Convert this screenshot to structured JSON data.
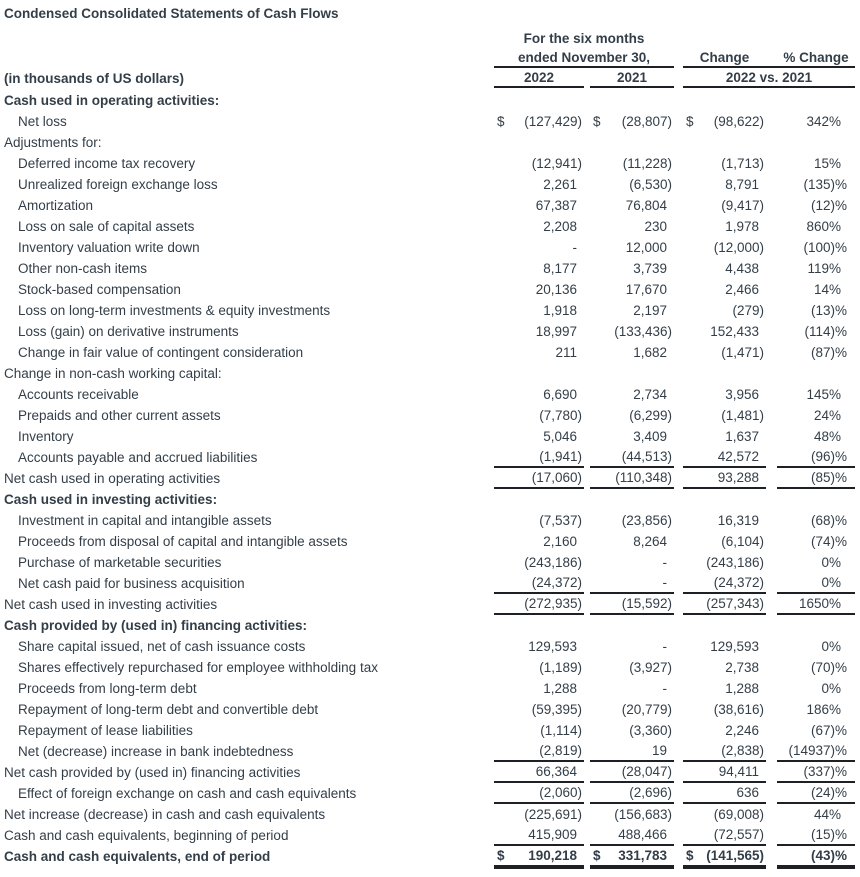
{
  "title": "Condensed Consolidated Statements of Cash Flows",
  "colors": {
    "text": "#333e48",
    "rule": "#1d2126",
    "background": "#ffffff"
  },
  "header": {
    "period_line1": "For the six months",
    "period_line2": "ended November 30,",
    "change_label": "Change",
    "pct_change_label": "% Change",
    "col_2022": "2022",
    "col_2021": "2021",
    "vs_label": "2022 vs. 2021",
    "units_note": "(in thousands of US dollars)",
    "currency_symbol": "$"
  },
  "table": {
    "rows": [
      {
        "label": "Cash used in operating activities:",
        "indent": 0,
        "bold": true,
        "dollar": false,
        "v2022": null,
        "v2021": null,
        "change": null,
        "pct": null,
        "rule": "none"
      },
      {
        "label": "Net loss",
        "indent": 1,
        "bold": false,
        "dollar": true,
        "v2022": "(127,429)",
        "v2021": "(28,807)",
        "change": "(98,622)",
        "pct": "342%",
        "rule": "none"
      },
      {
        "label": "Adjustments for:",
        "indent": 0,
        "bold": false,
        "dollar": false,
        "v2022": null,
        "v2021": null,
        "change": null,
        "pct": null,
        "rule": "none"
      },
      {
        "label": "Deferred income tax recovery",
        "indent": 1,
        "bold": false,
        "dollar": false,
        "v2022": "(12,941)",
        "v2021": "(11,228)",
        "change": "(1,713)",
        "pct": "15%",
        "rule": "none"
      },
      {
        "label": "Unrealized foreign exchange loss",
        "indent": 1,
        "bold": false,
        "dollar": false,
        "v2022": "2,261",
        "v2021": "(6,530)",
        "change": "8,791",
        "pct": "(135)%",
        "rule": "none"
      },
      {
        "label": "Amortization",
        "indent": 1,
        "bold": false,
        "dollar": false,
        "v2022": "67,387",
        "v2021": "76,804",
        "change": "(9,417)",
        "pct": "(12)%",
        "rule": "none"
      },
      {
        "label": "Loss on sale of capital assets",
        "indent": 1,
        "bold": false,
        "dollar": false,
        "v2022": "2,208",
        "v2021": "230",
        "change": "1,978",
        "pct": "860%",
        "rule": "none"
      },
      {
        "label": "Inventory valuation write down",
        "indent": 1,
        "bold": false,
        "dollar": false,
        "v2022": "-",
        "v2021": "12,000",
        "change": "(12,000)",
        "pct": "(100)%",
        "rule": "none"
      },
      {
        "label": "Other non-cash items",
        "indent": 1,
        "bold": false,
        "dollar": false,
        "v2022": "8,177",
        "v2021": "3,739",
        "change": "4,438",
        "pct": "119%",
        "rule": "none"
      },
      {
        "label": "Stock-based compensation",
        "indent": 1,
        "bold": false,
        "dollar": false,
        "v2022": "20,136",
        "v2021": "17,670",
        "change": "2,466",
        "pct": "14%",
        "rule": "none"
      },
      {
        "label": "Loss on long-term investments & equity investments",
        "indent": 1,
        "bold": false,
        "dollar": false,
        "v2022": "1,918",
        "v2021": "2,197",
        "change": "(279)",
        "pct": "(13)%",
        "rule": "none"
      },
      {
        "label": "Loss (gain) on derivative instruments",
        "indent": 1,
        "bold": false,
        "dollar": false,
        "v2022": "18,997",
        "v2021": "(133,436)",
        "change": "152,433",
        "pct": "(114)%",
        "rule": "none"
      },
      {
        "label": "Change in fair value of contingent consideration",
        "indent": 1,
        "bold": false,
        "dollar": false,
        "v2022": "211",
        "v2021": "1,682",
        "change": "(1,471)",
        "pct": "(87)%",
        "rule": "none"
      },
      {
        "label": "Change in non-cash working capital:",
        "indent": 0,
        "bold": false,
        "dollar": false,
        "v2022": null,
        "v2021": null,
        "change": null,
        "pct": null,
        "rule": "none"
      },
      {
        "label": "Accounts receivable",
        "indent": 1,
        "bold": false,
        "dollar": false,
        "v2022": "6,690",
        "v2021": "2,734",
        "change": "3,956",
        "pct": "145%",
        "rule": "none"
      },
      {
        "label": "Prepaids and other current assets",
        "indent": 1,
        "bold": false,
        "dollar": false,
        "v2022": "(7,780)",
        "v2021": "(6,299)",
        "change": "(1,481)",
        "pct": "24%",
        "rule": "none"
      },
      {
        "label": "Inventory",
        "indent": 1,
        "bold": false,
        "dollar": false,
        "v2022": "5,046",
        "v2021": "3,409",
        "change": "1,637",
        "pct": "48%",
        "rule": "none"
      },
      {
        "label": "Accounts payable and accrued liabilities",
        "indent": 1,
        "bold": false,
        "dollar": false,
        "v2022": "(1,941)",
        "v2021": "(44,513)",
        "change": "42,572",
        "pct": "(96)%",
        "rule": "single"
      },
      {
        "label": "Net cash used in operating activities",
        "indent": 0,
        "bold": false,
        "dollar": false,
        "v2022": "(17,060)",
        "v2021": "(110,348)",
        "change": "93,288",
        "pct": "(85)%",
        "rule": "single"
      },
      {
        "label": "Cash used in investing activities:",
        "indent": 0,
        "bold": true,
        "dollar": false,
        "v2022": null,
        "v2021": null,
        "change": null,
        "pct": null,
        "rule": "none"
      },
      {
        "label": "Investment in capital and intangible assets",
        "indent": 1,
        "bold": false,
        "dollar": false,
        "v2022": "(7,537)",
        "v2021": "(23,856)",
        "change": "16,319",
        "pct": "(68)%",
        "rule": "none"
      },
      {
        "label": "Proceeds from disposal of capital and intangible assets",
        "indent": 1,
        "bold": false,
        "dollar": false,
        "v2022": "2,160",
        "v2021": "8,264",
        "change": "(6,104)",
        "pct": "(74)%",
        "rule": "none"
      },
      {
        "label": "Purchase of marketable securities",
        "indent": 1,
        "bold": false,
        "dollar": false,
        "v2022": "(243,186)",
        "v2021": "-",
        "change": "(243,186)",
        "pct": "0%",
        "rule": "none"
      },
      {
        "label": "Net cash paid for business acquisition",
        "indent": 1,
        "bold": false,
        "dollar": false,
        "v2022": "(24,372)",
        "v2021": "-",
        "change": "(24,372)",
        "pct": "0%",
        "rule": "single"
      },
      {
        "label": "Net cash used in investing activities",
        "indent": 0,
        "bold": false,
        "dollar": false,
        "v2022": "(272,935)",
        "v2021": "(15,592)",
        "change": "(257,343)",
        "pct": "1650%",
        "rule": "single"
      },
      {
        "label": "Cash provided by (used in) financing activities:",
        "indent": 0,
        "bold": true,
        "dollar": false,
        "v2022": null,
        "v2021": null,
        "change": null,
        "pct": null,
        "rule": "none"
      },
      {
        "label": "Share capital issued, net of cash issuance costs",
        "indent": 1,
        "bold": false,
        "dollar": false,
        "v2022": "129,593",
        "v2021": "-",
        "change": "129,593",
        "pct": "0%",
        "rule": "none"
      },
      {
        "label": "Shares effectively repurchased for employee withholding tax",
        "indent": 1,
        "bold": false,
        "dollar": false,
        "v2022": "(1,189)",
        "v2021": "(3,927)",
        "change": "2,738",
        "pct": "(70)%",
        "rule": "none"
      },
      {
        "label": "Proceeds from long-term debt",
        "indent": 1,
        "bold": false,
        "dollar": false,
        "v2022": "1,288",
        "v2021": "-",
        "change": "1,288",
        "pct": "0%",
        "rule": "none"
      },
      {
        "label": "Repayment of long-term debt and convertible debt",
        "indent": 1,
        "bold": false,
        "dollar": false,
        "v2022": "(59,395)",
        "v2021": "(20,779)",
        "change": "(38,616)",
        "pct": "186%",
        "rule": "none"
      },
      {
        "label": "Repayment of lease liabilities",
        "indent": 1,
        "bold": false,
        "dollar": false,
        "v2022": "(1,114)",
        "v2021": "(3,360)",
        "change": "2,246",
        "pct": "(67)%",
        "rule": "none"
      },
      {
        "label": "Net (decrease) increase in bank indebtedness",
        "indent": 1,
        "bold": false,
        "dollar": false,
        "v2022": "(2,819)",
        "v2021": "19",
        "change": "(2,838)",
        "pct": "(14937)%",
        "rule": "single"
      },
      {
        "label": "Net cash provided by (used in) financing activities",
        "indent": 0,
        "bold": false,
        "dollar": false,
        "v2022": "66,364",
        "v2021": "(28,047)",
        "change": "94,411",
        "pct": "(337)%",
        "rule": "single"
      },
      {
        "label": "Effect of foreign exchange on cash and cash equivalents",
        "indent": 1,
        "bold": false,
        "dollar": false,
        "v2022": "(2,060)",
        "v2021": "(2,696)",
        "change": "636",
        "pct": "(24)%",
        "rule": "single"
      },
      {
        "label": "Net increase (decrease) in cash and cash equivalents",
        "indent": 0,
        "bold": false,
        "dollar": false,
        "v2022": "(225,691)",
        "v2021": "(156,683)",
        "change": "(69,008)",
        "pct": "44%",
        "rule": "none"
      },
      {
        "label": "Cash and cash equivalents, beginning of period",
        "indent": 0,
        "bold": false,
        "dollar": false,
        "v2022": "415,909",
        "v2021": "488,466",
        "change": "(72,557)",
        "pct": "(15)%",
        "rule": "single"
      },
      {
        "label": "Cash and cash equivalents, end of period",
        "indent": 0,
        "bold": true,
        "dollar": true,
        "v2022": "190,218",
        "v2021": "331,783",
        "change": "(141,565)",
        "pct": "(43)%",
        "rule": "double"
      }
    ]
  }
}
